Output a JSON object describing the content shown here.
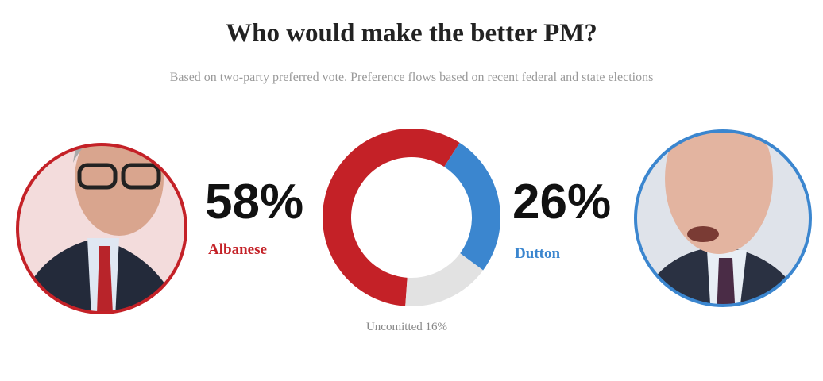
{
  "chart_data": {
    "type": "donut",
    "title": "Who would make the better PM?",
    "subtitle": "Based on two-party preferred vote. Preference flows based on recent federal and state elections",
    "categories": [
      "Albanese",
      "Dutton",
      "Uncomitted"
    ],
    "values": [
      58,
      26,
      16
    ],
    "value_labels": [
      "58%",
      "26%",
      "16%"
    ],
    "colors": [
      "#c42127",
      "#3b86cf",
      "#e2e2e2"
    ]
  }
}
